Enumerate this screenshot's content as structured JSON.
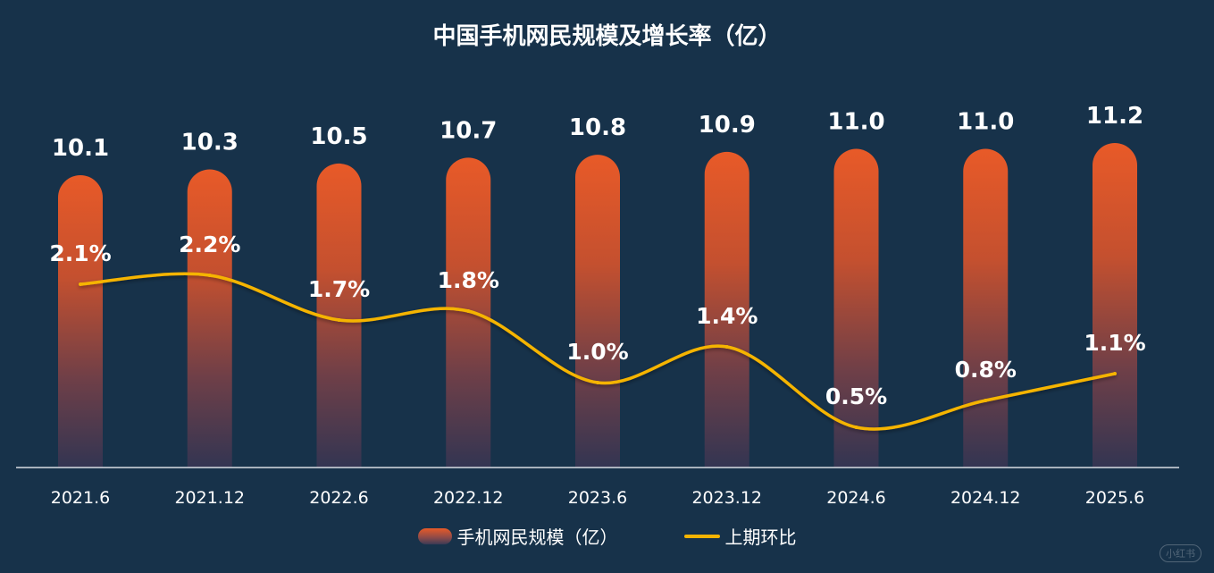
{
  "chart_data": {
    "type": "bar",
    "title": "中国手机网民规模及增长率（亿）",
    "categories": [
      "2021.6",
      "2021.12",
      "2022.6",
      "2022.12",
      "2023.6",
      "2023.12",
      "2024.6",
      "2024.12",
      "2025.6"
    ],
    "series": [
      {
        "name": "手机网民规模（亿）",
        "type": "bar",
        "values": [
          10.1,
          10.3,
          10.5,
          10.7,
          10.8,
          10.9,
          11.0,
          11.0,
          11.2
        ],
        "labels": [
          "10.1",
          "10.3",
          "10.5",
          "10.7",
          "10.8",
          "10.9",
          "11.0",
          "11.0",
          "11.2"
        ]
      },
      {
        "name": "上期环比",
        "type": "line",
        "values": [
          2.1,
          2.2,
          1.7,
          1.8,
          1.0,
          1.4,
          0.5,
          0.8,
          1.1
        ],
        "labels": [
          "2.1%",
          "2.2%",
          "1.7%",
          "1.8%",
          "1.0%",
          "1.4%",
          "0.5%",
          "0.8%",
          "1.1%"
        ]
      }
    ],
    "legend_position": "bottom",
    "colors": {
      "bar_top": "#e85a28",
      "bar_bottom": "#3a3a55",
      "line": "#f5b400",
      "background": "#17324a",
      "text": "#ffffff"
    }
  },
  "watermark": "小红书"
}
